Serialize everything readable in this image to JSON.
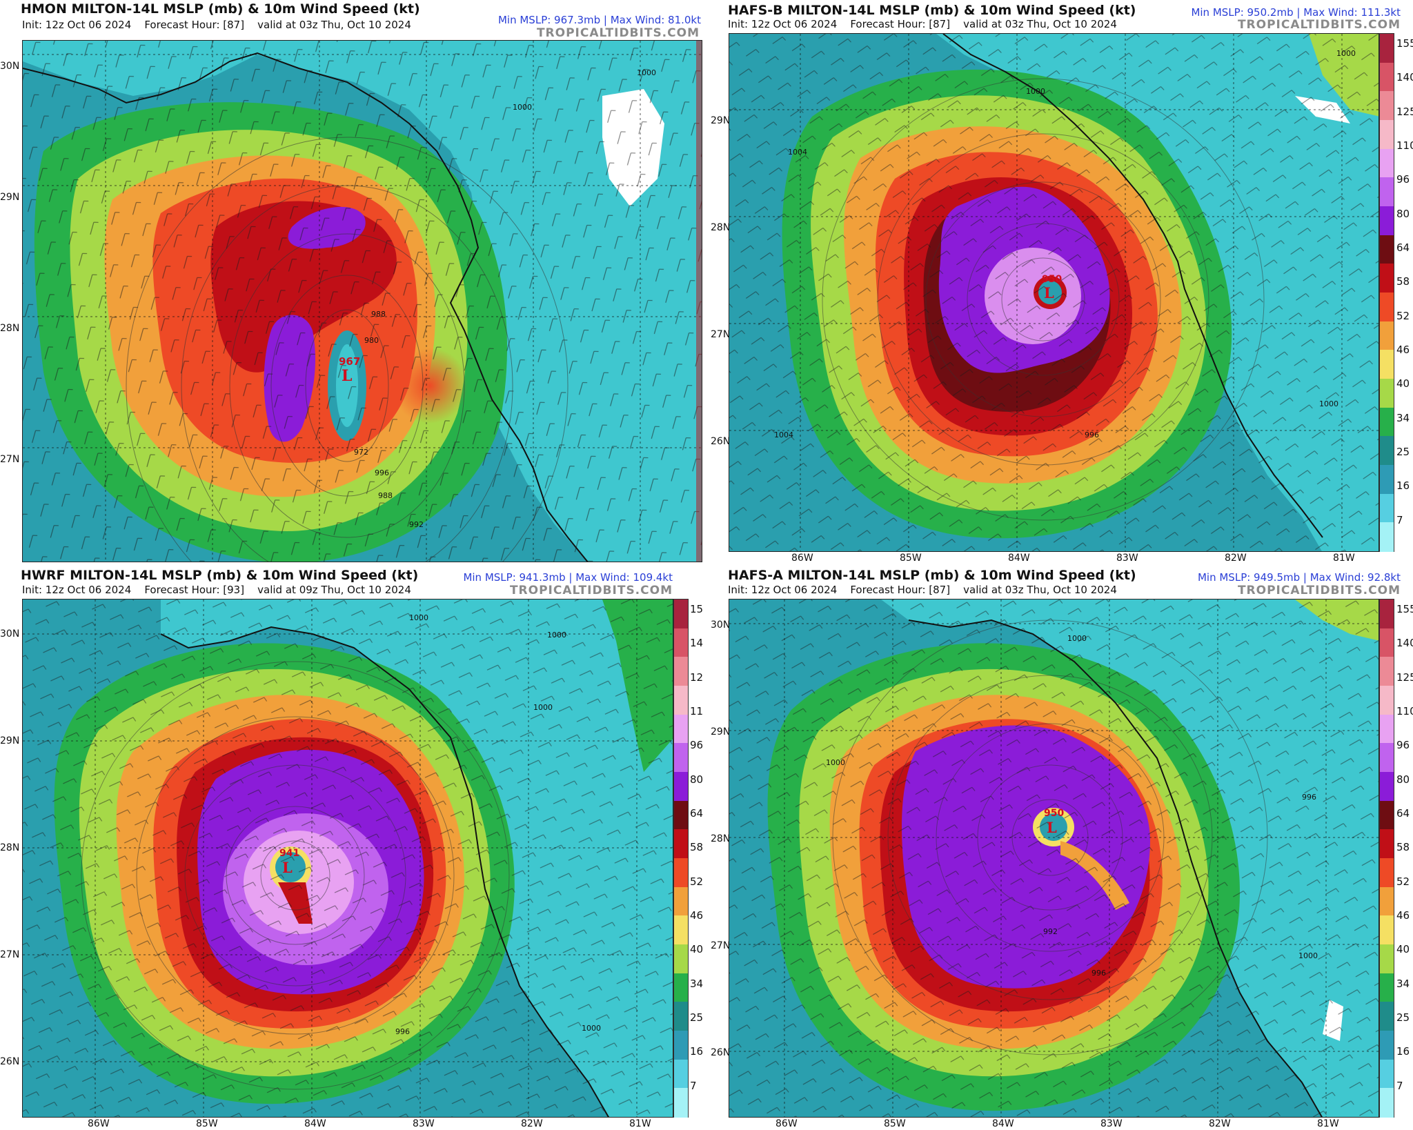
{
  "colors": {
    "title_text": "#111111",
    "stats_text": "#2a3fd6",
    "credit_text": "#8a8a8a",
    "low_marker": "#d10f1f",
    "land": "#3fc7cf",
    "ocean": "#2a9fae"
  },
  "colorbar": {
    "labels": [
      "155",
      "140",
      "125",
      "110",
      "96",
      "80",
      "64",
      "58",
      "52",
      "46",
      "40",
      "34",
      "25",
      "16",
      "7"
    ],
    "colors": [
      "#a8233e",
      "#d85466",
      "#ec8a96",
      "#f6b9c8",
      "#e8a2f2",
      "#c063ee",
      "#8b1cd8",
      "#6e0d12",
      "#c00f17",
      "#ee4a26",
      "#f1a03b",
      "#f5e063",
      "#a6d948",
      "#27b04a",
      "#1f8c8a",
      "#2e9bb5",
      "#56cfe1",
      "#a4f2f6"
    ],
    "unit": "kt"
  },
  "panels": [
    {
      "id": "hmon",
      "title": "HMON MILTON-14L MSLP (mb) & 10m Wind Speed (kt)",
      "init": "Init: 12z Oct 06 2024",
      "forecast_hour": "Forecast Hour: [87]",
      "valid": "valid at 03z Thu, Oct 10 2024",
      "min_mslp": "Min MSLP: 967.3mb",
      "max_wind": "Max Wind: 81.0kt",
      "credit": "TROPICALTIDBITS.COM",
      "low_label": "967",
      "low_symbol": "L",
      "lat_labels": [
        "30N",
        "29N",
        "28N",
        "27N"
      ],
      "lon_labels": [],
      "isobar_labels": [
        "1000",
        "1000",
        "988",
        "980",
        "972",
        "996",
        "988",
        "992"
      ]
    },
    {
      "id": "hafs-b",
      "title": "HAFS-B MILTON-14L MSLP (mb) & 10m Wind Speed (kt)",
      "init": "Init: 12z Oct 06 2024",
      "forecast_hour": "Forecast Hour: [87]",
      "valid": "valid at 03z Thu, Oct 10 2024",
      "min_mslp": "Min MSLP: 950.2mb",
      "max_wind": "Max Wind: 111.3kt",
      "credit": "TROPICALTIDBITS.COM",
      "low_label": "950",
      "low_symbol": "L",
      "lat_labels": [
        "29N",
        "28N",
        "27N",
        "26N"
      ],
      "lon_labels": [
        "86W",
        "85W",
        "84W",
        "83W",
        "82W",
        "81W"
      ],
      "isobar_labels": [
        "1000",
        "1004",
        "1000",
        "1004",
        "996",
        "1000"
      ]
    },
    {
      "id": "hwrf",
      "title": "HWRF MILTON-14L MSLP (mb) & 10m Wind Speed (kt)",
      "init": "Init: 12z Oct 06 2024",
      "forecast_hour": "Forecast Hour: [93]",
      "valid": "valid at 09z Thu, Oct 10 2024",
      "min_mslp": "Min MSLP: 941.3mb",
      "max_wind": "Max Wind: 109.4kt",
      "credit": "TROPICALTIDBITS.COM",
      "low_label": "941",
      "low_symbol": "L",
      "lat_labels": [
        "30N",
        "29N",
        "28N",
        "27N",
        "26N"
      ],
      "lon_labels": [
        "86W",
        "85W",
        "84W",
        "83W",
        "82W",
        "81W"
      ],
      "isobar_labels": [
        "1000",
        "1000",
        "1000",
        "996",
        "1000"
      ]
    },
    {
      "id": "hafs-a",
      "title": "HAFS-A MILTON-14L MSLP (mb) & 10m Wind Speed (kt)",
      "init": "Init: 12z Oct 06 2024",
      "forecast_hour": "Forecast Hour: [87]",
      "valid": "valid at 03z Thu, Oct 10 2024",
      "min_mslp": "Min MSLP: 949.5mb",
      "max_wind": "Max Wind: 92.8kt",
      "credit": "TROPICALTIDBITS.COM",
      "low_label": "950",
      "low_symbol": "L",
      "lat_labels": [
        "30N",
        "29N",
        "28N",
        "27N",
        "26N"
      ],
      "lon_labels": [
        "86W",
        "85W",
        "84W",
        "83W",
        "82W",
        "81W"
      ],
      "isobar_labels": [
        "1000",
        "1000",
        "996",
        "992",
        "996",
        "1000"
      ]
    }
  ]
}
